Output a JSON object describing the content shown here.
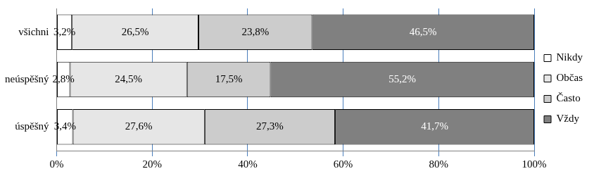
{
  "chart_data": {
    "type": "bar",
    "orientation": "horizontal",
    "stacked": true,
    "categories": [
      "všichni",
      "neúspěšný",
      "úspěšný"
    ],
    "series": [
      {
        "name": "Nikdy",
        "color": "#ffffff",
        "values": [
          3.2,
          2.8,
          3.4
        ],
        "value_labels": [
          "3,2%",
          "2,8%",
          "3,4%"
        ]
      },
      {
        "name": "Občas",
        "color": "#e6e6e6",
        "values": [
          26.5,
          24.5,
          27.6
        ],
        "value_labels": [
          "26,5%",
          "24,5%",
          "27,6%"
        ]
      },
      {
        "name": "Často",
        "color": "#cccccc",
        "values": [
          23.8,
          17.5,
          27.3
        ],
        "value_labels": [
          "23,8%",
          "17,5%",
          "27,3%"
        ]
      },
      {
        "name": "Vždy",
        "color": "#808080",
        "values": [
          46.5,
          55.2,
          41.7
        ],
        "value_labels": [
          "46,5%",
          "55,2%",
          "41,7%"
        ]
      }
    ],
    "xlim": [
      0,
      100
    ],
    "xticks": [
      {
        "value": 0,
        "label": "0%"
      },
      {
        "value": 20,
        "label": "20%"
      },
      {
        "value": 40,
        "label": "40%"
      },
      {
        "value": 60,
        "label": "60%"
      },
      {
        "value": 80,
        "label": "80%"
      },
      {
        "value": 100,
        "label": "100%"
      }
    ],
    "grid": true,
    "legend": "right",
    "data_labels": true
  }
}
